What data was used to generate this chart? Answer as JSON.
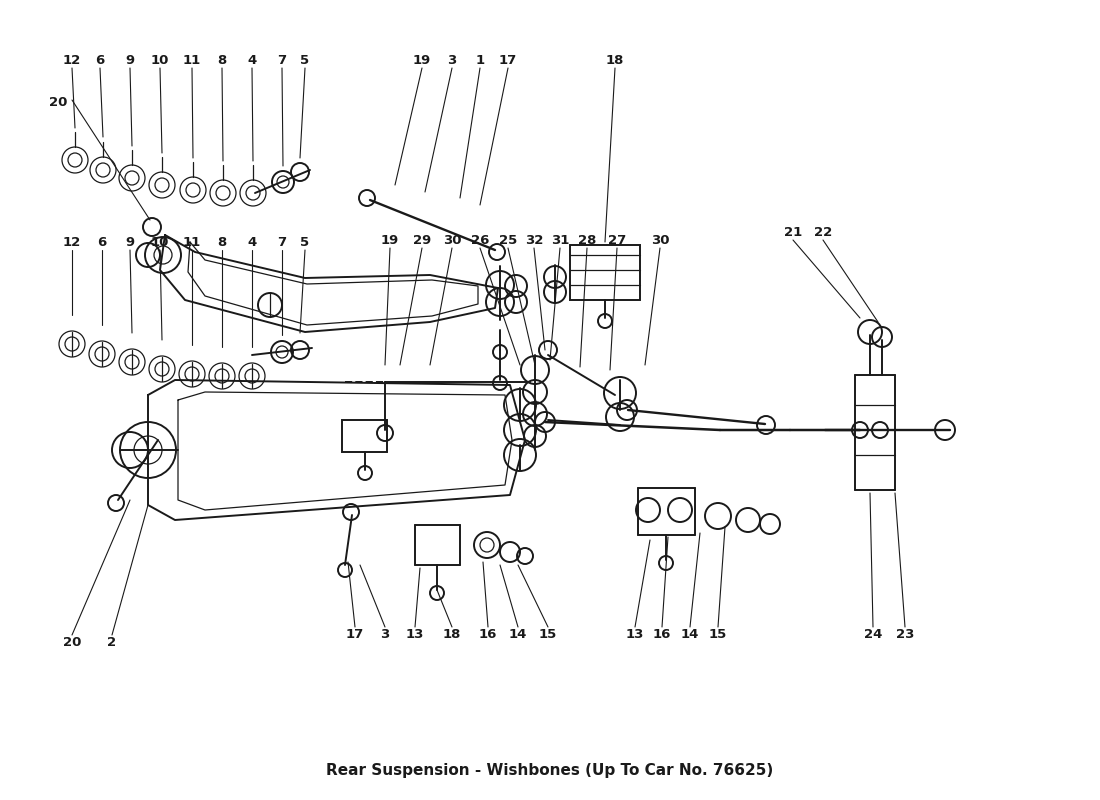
{
  "title": "Rear Suspension - Wishbones (Up To Car No. 76625)",
  "bg_color": "#ffffff",
  "lc": "#1a1a1a",
  "fig_w": 11.0,
  "fig_h": 8.0,
  "dpi": 100,
  "upper_labels": [
    [
      "12",
      "6",
      "9",
      "10",
      "11",
      "8",
      "4",
      "7",
      "5"
    ],
    [
      "19",
      "3",
      "1",
      "17"
    ],
    [
      "18"
    ]
  ],
  "lower_row_labels": [
    [
      "12",
      "6",
      "9",
      "10",
      "11",
      "8",
      "4",
      "7",
      "5"
    ],
    [
      "19",
      "29",
      "30",
      "26",
      "25",
      "32",
      "31",
      "28",
      "27",
      "30"
    ],
    [
      "21",
      "22"
    ]
  ],
  "bottom_labels_left": [
    "20",
    "2"
  ],
  "bottom_labels_center": [
    "17",
    "3",
    "13",
    "18",
    "16",
    "14",
    "15"
  ],
  "bottom_labels_right": [
    "13",
    "16",
    "14",
    "15",
    "24",
    "23"
  ]
}
